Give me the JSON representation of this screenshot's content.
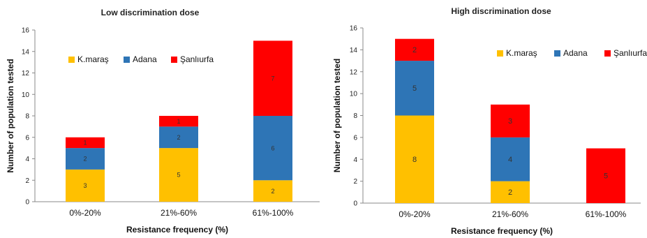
{
  "colors": {
    "K.maraş": "#FFC000",
    "Adana": "#2E75B6",
    "Şanlıurfa": "#FF0000"
  },
  "chart_data": [
    {
      "type": "bar",
      "stacked": true,
      "title": "Low discrimination dose",
      "xlabel": "Resistance frequency (%)",
      "ylabel": "Number of population tested",
      "categories": [
        "0%-20%",
        "21%-60%",
        "61%-100%"
      ],
      "ylim": [
        0,
        16
      ],
      "yticks": [
        "0",
        "2",
        "4",
        "6",
        "8",
        "10",
        "12",
        "14",
        "16"
      ],
      "series": [
        {
          "name": "K.maraş",
          "values": [
            3,
            5,
            2
          ],
          "labels": [
            "3",
            "5",
            "2"
          ]
        },
        {
          "name": "Adana",
          "values": [
            2,
            2,
            6
          ],
          "labels": [
            "2",
            "2",
            "6"
          ]
        },
        {
          "name": "Şanlıurfa",
          "values": [
            1,
            1,
            7
          ],
          "labels": [
            "1",
            "1",
            "7"
          ]
        }
      ],
      "legend": "top-left",
      "grid": false
    },
    {
      "type": "bar",
      "stacked": true,
      "title": "High discrimination dose",
      "xlabel": "Resistance frequency (%)",
      "ylabel": "Number of population tested",
      "categories": [
        "0%-20%",
        "21%-60%",
        "61%-100%"
      ],
      "ylim": [
        0,
        16
      ],
      "yticks": [
        "0",
        "2",
        "4",
        "6",
        "8",
        "10",
        "12",
        "14",
        "16"
      ],
      "series": [
        {
          "name": "K.maraş",
          "values": [
            8,
            2,
            0
          ],
          "labels": [
            "8",
            "2",
            ""
          ]
        },
        {
          "name": "Adana",
          "values": [
            5,
            4,
            0
          ],
          "labels": [
            "5",
            "4",
            ""
          ]
        },
        {
          "name": "Şanlıurfa",
          "values": [
            2,
            3,
            5
          ],
          "labels": [
            "2",
            "3",
            "5"
          ]
        }
      ],
      "legend": "top-right",
      "grid": false
    }
  ]
}
